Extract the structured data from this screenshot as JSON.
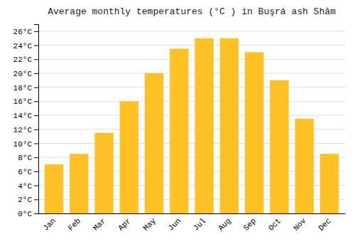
{
  "chart_data": {
    "type": "bar",
    "title": "Average monthly temperatures (°C ) in Buşrá ash Shām",
    "categories": [
      "Jan",
      "Feb",
      "Mar",
      "Apr",
      "May",
      "Jun",
      "Jul",
      "Aug",
      "Sep",
      "Oct",
      "Nov",
      "Dec"
    ],
    "values": [
      7,
      8.5,
      11.5,
      16,
      20,
      23.5,
      25,
      25,
      23,
      19,
      13.5,
      8.5
    ],
    "color": "#FFC125",
    "ylim": [
      0,
      27
    ],
    "yticks": [
      {
        "value": 0,
        "label": "0°C"
      },
      {
        "value": 2,
        "label": "2°C"
      },
      {
        "value": 4,
        "label": "4°C"
      },
      {
        "value": 6,
        "label": "6°C"
      },
      {
        "value": 8,
        "label": "8°C"
      },
      {
        "value": 10,
        "label": "10°C"
      },
      {
        "value": 12,
        "label": "12°C"
      },
      {
        "value": 14,
        "label": "14°C"
      },
      {
        "value": 16,
        "label": "16°C"
      },
      {
        "value": 18,
        "label": "18°C"
      },
      {
        "value": 20,
        "label": "20°C"
      },
      {
        "value": 22,
        "label": "22°C"
      },
      {
        "value": 24,
        "label": "24°C"
      },
      {
        "value": 26,
        "label": "26°C"
      }
    ],
    "grid": true
  }
}
